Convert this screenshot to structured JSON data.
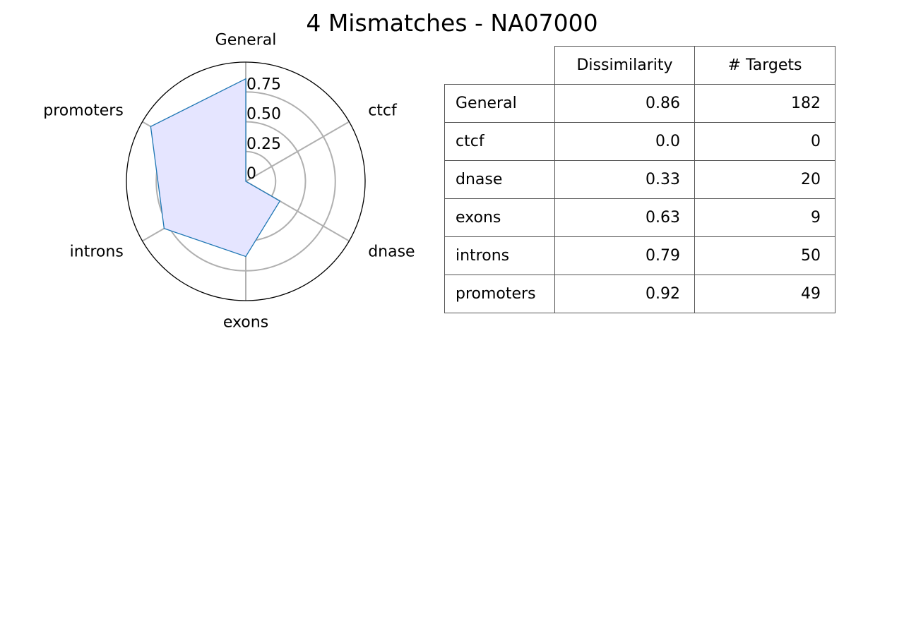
{
  "chart_data": [
    {
      "type": "radar",
      "title": "4 Mismatches - NA07000",
      "categories": [
        "General",
        "ctcf",
        "dnase",
        "exons",
        "introns",
        "promoters"
      ],
      "series": [
        {
          "values": [
            0.86,
            0.0,
            0.33,
            0.63,
            0.79,
            0.92
          ]
        }
      ],
      "rlim": [
        0,
        1
      ],
      "radial_ticks": [
        0,
        0.25,
        0.5,
        0.75
      ],
      "radial_tick_labels": [
        "0",
        "0.25",
        "0.50",
        "0.75"
      ],
      "colors": {
        "line": "#1f77b4",
        "fill": "#e5e5ff",
        "grid": "#b0b0b0",
        "frame": "#000000"
      }
    },
    {
      "type": "table",
      "columns": [
        "",
        "Dissimilarity",
        "# Targets"
      ],
      "rows": [
        {
          "label": "General",
          "dissimilarity": "0.86",
          "targets": "182"
        },
        {
          "label": "ctcf",
          "dissimilarity": "0.0",
          "targets": "0"
        },
        {
          "label": "dnase",
          "dissimilarity": "0.33",
          "targets": "20"
        },
        {
          "label": "exons",
          "dissimilarity": "0.63",
          "targets": "9"
        },
        {
          "label": "introns",
          "dissimilarity": "0.79",
          "targets": "50"
        },
        {
          "label": "promoters",
          "dissimilarity": "0.92",
          "targets": "49"
        }
      ]
    }
  ]
}
